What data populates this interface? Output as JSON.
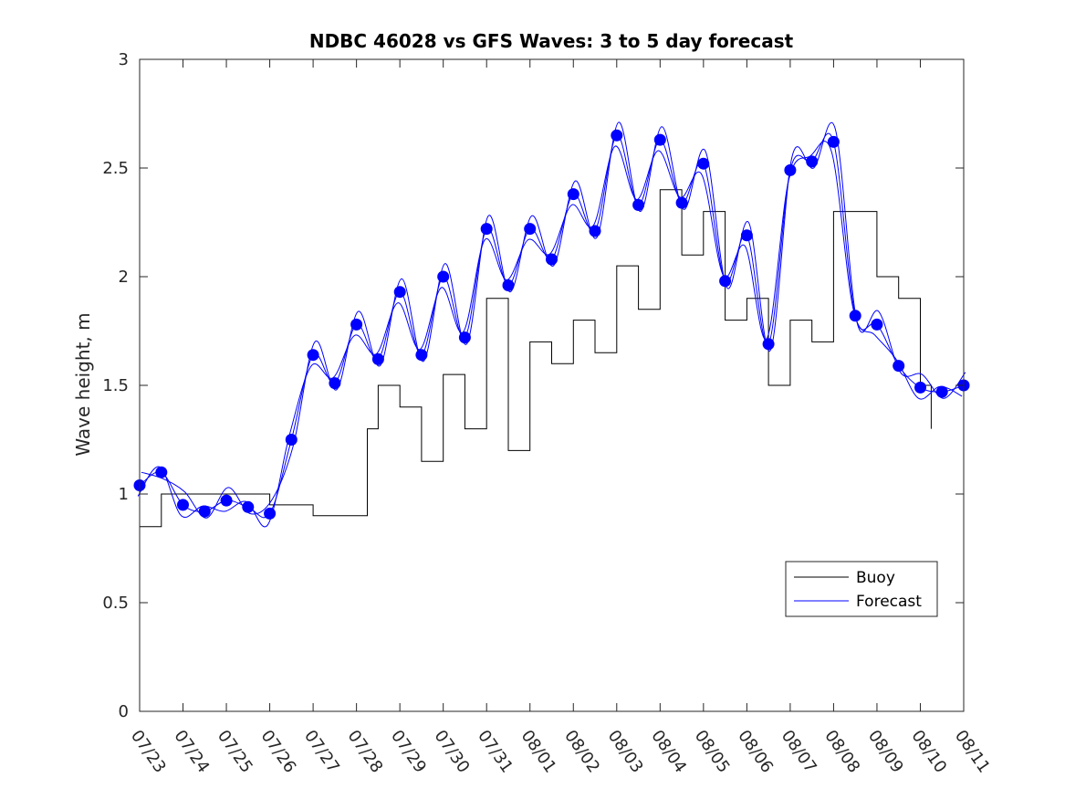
{
  "chart_data": {
    "type": "line",
    "title": "NDBC 46028 vs GFS Waves: 3 to 5 day forecast",
    "xlabel": "",
    "ylabel": "Wave height, m",
    "xlim": [
      "07/23",
      "08/11"
    ],
    "ylim": [
      0,
      3
    ],
    "x_ticks": [
      "07/23",
      "07/24",
      "07/25",
      "07/26",
      "07/27",
      "07/28",
      "07/29",
      "07/30",
      "07/31",
      "08/01",
      "08/02",
      "08/03",
      "08/04",
      "08/05",
      "08/06",
      "08/07",
      "08/08",
      "08/09",
      "08/10",
      "08/11"
    ],
    "y_ticks": [
      0,
      0.5,
      1,
      1.5,
      2,
      2.5,
      3
    ],
    "y_tick_labels": [
      "0",
      "0.5",
      "1",
      "1.5",
      "2",
      "2.5",
      "3"
    ],
    "grid": false,
    "legend_position": "bottom-right",
    "colors": {
      "buoy": "#000000",
      "forecast": "#0000ff"
    },
    "series": [
      {
        "name": "Buoy",
        "color": "#000000",
        "x": [
          "07/23 00:00",
          "07/23 12:00",
          "07/24 00:00",
          "07/24 12:00",
          "07/25 00:00",
          "07/25 12:00",
          "07/26 00:00",
          "07/26 12:00",
          "07/27 00:00",
          "07/27 12:00",
          "07/28 00:00",
          "07/28 06:00",
          "07/28 12:00",
          "07/29 00:00",
          "07/29 12:00",
          "07/30 00:00",
          "07/30 12:00",
          "07/31 00:00",
          "07/31 12:00",
          "08/01 00:00",
          "08/01 12:00",
          "08/02 00:00",
          "08/02 12:00",
          "08/03 00:00",
          "08/03 12:00",
          "08/04 00:00",
          "08/04 12:00",
          "08/05 00:00",
          "08/05 12:00",
          "08/06 00:00",
          "08/06 12:00",
          "08/07 00:00",
          "08/07 12:00",
          "08/08 00:00",
          "08/08 12:00",
          "08/09 00:00",
          "08/09 12:00",
          "08/10 00:00",
          "08/10 06:00"
        ],
        "values": [
          0.85,
          1.0,
          1.0,
          1.0,
          1.0,
          1.0,
          0.95,
          0.95,
          0.9,
          0.9,
          0.9,
          1.3,
          1.5,
          1.4,
          1.15,
          1.55,
          1.3,
          1.9,
          1.2,
          1.7,
          1.6,
          1.8,
          1.65,
          2.05,
          1.85,
          2.4,
          2.1,
          2.3,
          1.8,
          1.9,
          1.5,
          1.8,
          1.7,
          2.3,
          2.3,
          2.0,
          1.9,
          1.5,
          1.3
        ]
      },
      {
        "name": "Forecast",
        "color": "#0000ff",
        "x": [
          "07/23 00:00",
          "07/23 12:00",
          "07/24 00:00",
          "07/24 12:00",
          "07/25 00:00",
          "07/25 12:00",
          "07/26 00:00",
          "07/26 12:00",
          "07/27 00:00",
          "07/27 12:00",
          "07/28 00:00",
          "07/28 12:00",
          "07/29 00:00",
          "07/29 12:00",
          "07/30 00:00",
          "07/30 12:00",
          "07/31 00:00",
          "07/31 12:00",
          "08/01 00:00",
          "08/01 12:00",
          "08/02 00:00",
          "08/02 12:00",
          "08/03 00:00",
          "08/03 12:00",
          "08/04 00:00",
          "08/04 12:00",
          "08/05 00:00",
          "08/05 12:00",
          "08/06 00:00",
          "08/06 12:00",
          "08/07 00:00",
          "08/07 12:00",
          "08/08 00:00",
          "08/08 12:00",
          "08/09 00:00",
          "08/09 12:00",
          "08/10 00:00",
          "08/10 12:00",
          "08/11 00:00"
        ],
        "values": [
          1.04,
          1.1,
          0.95,
          0.92,
          0.97,
          0.94,
          0.91,
          1.25,
          1.64,
          1.51,
          1.78,
          1.62,
          1.93,
          1.64,
          2.0,
          1.72,
          2.22,
          1.96,
          2.22,
          2.08,
          2.38,
          2.21,
          2.65,
          2.33,
          2.63,
          2.34,
          2.52,
          1.98,
          2.19,
          1.69,
          2.49,
          2.53,
          2.62,
          1.82,
          1.78,
          1.59,
          1.49,
          1.47,
          1.5
        ]
      }
    ]
  }
}
